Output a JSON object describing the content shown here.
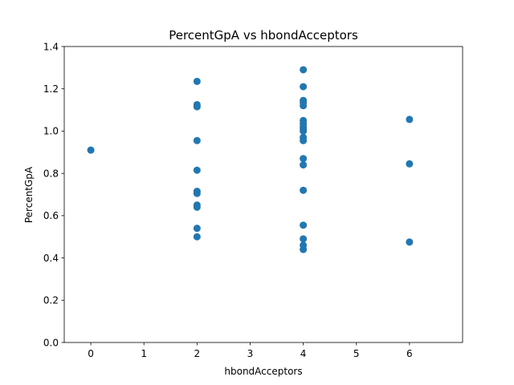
{
  "chart_data": {
    "type": "scatter",
    "title": "PercentGpA vs hbondAcceptors",
    "xlabel": "hbondAcceptors",
    "ylabel": "PercentGpA",
    "xlim": [
      -0.5,
      7
    ],
    "ylim": [
      0.0,
      1.4
    ],
    "xticks": [
      0,
      1,
      2,
      3,
      4,
      5,
      6
    ],
    "yticks": [
      0.0,
      0.2,
      0.4,
      0.6,
      0.8,
      1.0,
      1.2,
      1.4
    ],
    "xtick_labels": [
      "0",
      "1",
      "2",
      "3",
      "4",
      "5",
      "6"
    ],
    "ytick_labels": [
      "0.0",
      "0.2",
      "0.4",
      "0.6",
      "0.8",
      "1.0",
      "1.2",
      "1.4"
    ],
    "grid": false,
    "marker_color": "#1f77b4",
    "points": [
      {
        "x": 0,
        "y": 0.91
      },
      {
        "x": 2,
        "y": 1.235
      },
      {
        "x": 2,
        "y": 1.125
      },
      {
        "x": 2,
        "y": 1.115
      },
      {
        "x": 2,
        "y": 0.955
      },
      {
        "x": 2,
        "y": 0.815
      },
      {
        "x": 2,
        "y": 0.715
      },
      {
        "x": 2,
        "y": 0.705
      },
      {
        "x": 2,
        "y": 0.65
      },
      {
        "x": 2,
        "y": 0.64
      },
      {
        "x": 2,
        "y": 0.54
      },
      {
        "x": 2,
        "y": 0.5
      },
      {
        "x": 4,
        "y": 1.29
      },
      {
        "x": 4,
        "y": 1.21
      },
      {
        "x": 4,
        "y": 1.145
      },
      {
        "x": 4,
        "y": 1.135
      },
      {
        "x": 4,
        "y": 1.12
      },
      {
        "x": 4,
        "y": 1.05
      },
      {
        "x": 4,
        "y": 1.035
      },
      {
        "x": 4,
        "y": 1.02
      },
      {
        "x": 4,
        "y": 1.01
      },
      {
        "x": 4,
        "y": 1.0
      },
      {
        "x": 4,
        "y": 0.97
      },
      {
        "x": 4,
        "y": 0.955
      },
      {
        "x": 4,
        "y": 0.87
      },
      {
        "x": 4,
        "y": 0.84
      },
      {
        "x": 4,
        "y": 0.72
      },
      {
        "x": 4,
        "y": 0.555
      },
      {
        "x": 4,
        "y": 0.49
      },
      {
        "x": 4,
        "y": 0.46
      },
      {
        "x": 4,
        "y": 0.44
      },
      {
        "x": 6,
        "y": 1.055
      },
      {
        "x": 6,
        "y": 0.845
      },
      {
        "x": 6,
        "y": 0.475
      }
    ]
  }
}
